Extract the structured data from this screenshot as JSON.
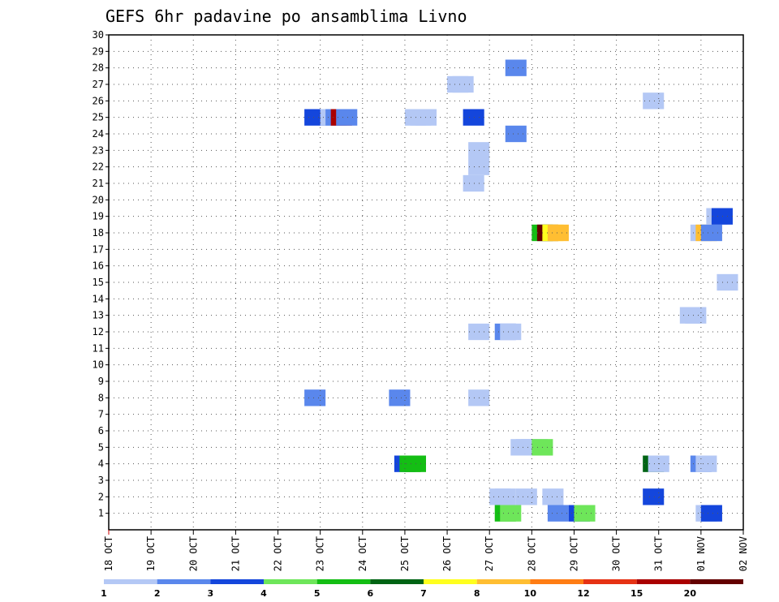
{
  "chart_data": {
    "type": "heatmap",
    "title": "GEFS 6hr padavine po ansamblima Livno",
    "xlabel": "",
    "ylabel": "",
    "x_tick_labels": [
      "18 OCT",
      "19 OCT",
      "20 OCT",
      "21 OCT",
      "22 OCT",
      "23 OCT",
      "24 OCT",
      "25 OCT",
      "26 OCT",
      "27 OCT",
      "28 OCT",
      "29 OCT",
      "30 OCT",
      "31 OCT",
      "01 NOV",
      "02 NOV"
    ],
    "y_tick_labels": [
      "1",
      "2",
      "3",
      "4",
      "5",
      "6",
      "7",
      "8",
      "9",
      "10",
      "11",
      "12",
      "13",
      "14",
      "15",
      "16",
      "17",
      "18",
      "19",
      "20",
      "21",
      "22",
      "23",
      "24",
      "25",
      "26",
      "27",
      "28",
      "29",
      "30"
    ],
    "y_range": [
      0,
      30
    ],
    "x_range_days": [
      0,
      15
    ],
    "grid": true,
    "colorbar": {
      "thresholds": [
        "1",
        "2",
        "3",
        "4",
        "5",
        "6",
        "7",
        "8",
        "10",
        "12",
        "15",
        "20"
      ],
      "colors": [
        "#b4c8f5",
        "#5a87ec",
        "#1446dc",
        "#6ee65a",
        "#14be14",
        "#006414",
        "#ffff1e",
        "#ffbe32",
        "#ff7d14",
        "#e63214",
        "#aa0000",
        "#640000"
      ]
    },
    "cells": [
      {
        "t": 36.5,
        "m": 1,
        "c": 5
      },
      {
        "t": 37.0,
        "m": 1,
        "c": 4
      },
      {
        "t": 41.5,
        "m": 1,
        "c": 2
      },
      {
        "t": 43.5,
        "m": 1,
        "c": 3
      },
      {
        "t": 44.0,
        "m": 1,
        "c": 4
      },
      {
        "t": 55.5,
        "m": 1,
        "c": 1
      },
      {
        "t": 56.0,
        "m": 1,
        "c": 3
      },
      {
        "t": 36.0,
        "m": 2,
        "c": 1
      },
      {
        "t": 36.5,
        "m": 2,
        "c": 1
      },
      {
        "t": 38.5,
        "m": 2,
        "c": 1
      },
      {
        "t": 41.0,
        "m": 2,
        "c": 1
      },
      {
        "t": 50.5,
        "m": 2,
        "c": 3
      },
      {
        "t": 27.0,
        "m": 4,
        "c": 3
      },
      {
        "t": 27.5,
        "m": 4,
        "c": 5
      },
      {
        "t": 28.0,
        "m": 4,
        "c": 5
      },
      {
        "t": 50.5,
        "m": 4,
        "c": 6
      },
      {
        "t": 51.0,
        "m": 4,
        "c": 1
      },
      {
        "t": 55.0,
        "m": 4,
        "c": 2
      },
      {
        "t": 55.5,
        "m": 4,
        "c": 1
      },
      {
        "t": 38.0,
        "m": 5,
        "c": 1
      },
      {
        "t": 38.5,
        "m": 5,
        "c": 1
      },
      {
        "t": 39.0,
        "m": 5,
        "c": 1
      },
      {
        "t": 39.5,
        "m": 5,
        "c": 1
      },
      {
        "t": 40.0,
        "m": 5,
        "c": 4
      },
      {
        "t": 18.5,
        "m": 8,
        "c": 2
      },
      {
        "t": 26.5,
        "m": 8,
        "c": 2
      },
      {
        "t": 34.0,
        "m": 8,
        "c": 1
      },
      {
        "t": 34.0,
        "m": 12,
        "c": 1
      },
      {
        "t": 36.5,
        "m": 12,
        "c": 2
      },
      {
        "t": 37.0,
        "m": 12,
        "c": 1
      },
      {
        "t": 54.0,
        "m": 13,
        "c": 1
      },
      {
        "t": 54.5,
        "m": 13,
        "c": 1
      },
      {
        "t": 57.5,
        "m": 15,
        "c": 1
      },
      {
        "t": 40.0,
        "m": 18,
        "c": 5
      },
      {
        "t": 40.5,
        "m": 18,
        "c": 12
      },
      {
        "t": 41.0,
        "m": 18,
        "c": 7
      },
      {
        "t": 41.5,
        "m": 18,
        "c": 8
      },
      {
        "t": 55.0,
        "m": 18,
        "c": 1
      },
      {
        "t": 55.5,
        "m": 18,
        "c": 8
      },
      {
        "t": 56.0,
        "m": 18,
        "c": 2
      },
      {
        "t": 56.5,
        "m": 19,
        "c": 1
      },
      {
        "t": 57.0,
        "m": 19,
        "c": 3
      },
      {
        "t": 33.5,
        "m": 21,
        "c": 1
      },
      {
        "t": 34.0,
        "m": 22,
        "c": 1
      },
      {
        "t": 34.0,
        "m": 23,
        "c": 1
      },
      {
        "t": 37.5,
        "m": 24,
        "c": 2
      },
      {
        "t": 18.5,
        "m": 25,
        "c": 3
      },
      {
        "t": 20.0,
        "m": 25,
        "c": 1
      },
      {
        "t": 20.5,
        "m": 25,
        "c": 2
      },
      {
        "t": 21.0,
        "m": 25,
        "c": 11
      },
      {
        "t": 21.5,
        "m": 25,
        "c": 2
      },
      {
        "t": 28.0,
        "m": 25,
        "c": 1
      },
      {
        "t": 28.5,
        "m": 25,
        "c": 1
      },
      {
        "t": 29.0,
        "m": 25,
        "c": 1
      },
      {
        "t": 33.5,
        "m": 25,
        "c": 3
      },
      {
        "t": 50.5,
        "m": 26,
        "c": 1
      },
      {
        "t": 32.0,
        "m": 27,
        "c": 1
      },
      {
        "t": 32.5,
        "m": 27,
        "c": 1
      },
      {
        "t": 37.5,
        "m": 28,
        "c": 2
      }
    ]
  }
}
